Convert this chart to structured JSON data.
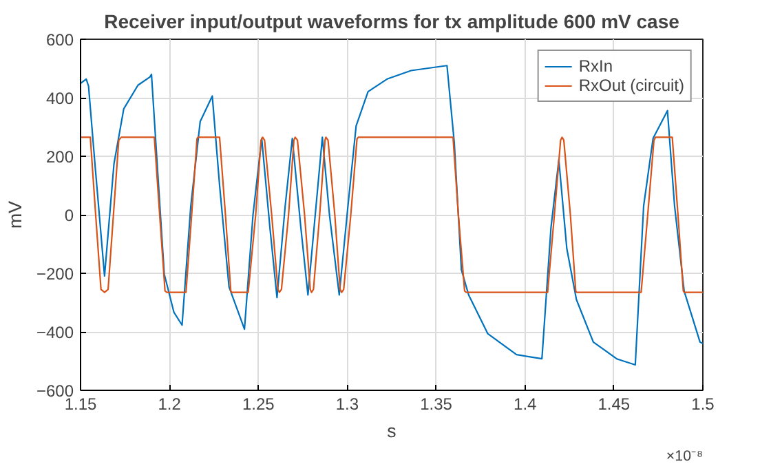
{
  "chart_data": {
    "type": "line",
    "title": "Receiver input/output waveforms for tx amplitude 600 mV case",
    "xlabel": "s",
    "ylabel": "mV",
    "annotations": [
      "×10⁻⁸"
    ],
    "xlim": [
      1.15,
      1.5
    ],
    "xticks": [
      1.15,
      1.2,
      1.25,
      1.3,
      1.35,
      1.4,
      1.45,
      1.5
    ],
    "ylim": [
      -600,
      600
    ],
    "yticks": [
      -600,
      -400,
      -200,
      0,
      200,
      400,
      600
    ],
    "grid": true,
    "legend": "top right",
    "line_style": "solid",
    "series": [
      {
        "name": "RxIn",
        "color": "#0072bd",
        "x": [
          1.15,
          1.1532,
          1.1545,
          1.1581,
          1.1635,
          1.1688,
          1.1743,
          1.1823,
          1.189,
          1.1899,
          1.1931,
          1.1971,
          1.2025,
          1.2071,
          1.212,
          1.2173,
          1.2241,
          1.2282,
          1.2335,
          1.2422,
          1.247,
          1.2519,
          1.2565,
          1.2605,
          1.2651,
          1.2691,
          1.2739,
          1.2779,
          1.282,
          1.286,
          1.29,
          1.2955,
          1.3004,
          1.305,
          1.3117,
          1.3224,
          1.3359,
          1.3561,
          1.3602,
          1.3642,
          1.3683,
          1.379,
          1.3952,
          1.4095,
          1.4146,
          1.419,
          1.4235,
          1.4289,
          1.4384,
          1.4518,
          1.462,
          1.4667,
          1.472,
          1.4801,
          1.4841,
          1.4895,
          1.4984,
          1.5
        ],
        "values": [
          449,
          464,
          440,
          174,
          -209,
          174,
          362,
          443,
          471,
          480,
          174,
          -203,
          -333,
          -377,
          30,
          319,
          406,
          101,
          -246,
          -391,
          0,
          261,
          -43,
          -283,
          30,
          261,
          -43,
          -274,
          0,
          265,
          0,
          -274,
          30,
          304,
          421,
          464,
          493,
          510,
          247,
          -188,
          -274,
          -406,
          -478,
          -492,
          -43,
          188,
          -116,
          -290,
          -435,
          -493,
          -513,
          30,
          261,
          356,
          30,
          -261,
          -435,
          -440
        ]
      },
      {
        "name": "RxOut (circuit)",
        "color": "#d95319",
        "x": [
          1.15,
          1.1555,
          1.1585,
          1.1615,
          1.1635,
          1.1655,
          1.1685,
          1.1715,
          1.1729,
          1.1915,
          1.1945,
          1.1975,
          1.1985,
          1.2093,
          1.2125,
          1.2155,
          1.216,
          1.2282,
          1.2315,
          1.2345,
          1.235,
          1.2443,
          1.2485,
          1.2515,
          1.2524,
          1.2535,
          1.2575,
          1.261,
          1.2618,
          1.263,
          1.267,
          1.27,
          1.2707,
          1.272,
          1.276,
          1.2792,
          1.2799,
          1.281,
          1.2845,
          1.2875,
          1.288,
          1.2892,
          1.293,
          1.296,
          1.2969,
          1.298,
          1.302,
          1.3055,
          1.3063,
          1.3595,
          1.3625,
          1.366,
          1.3669,
          1.4127,
          1.4165,
          1.42,
          1.4208,
          1.4218,
          1.4255,
          1.4285,
          1.4289,
          1.4653,
          1.469,
          1.4725,
          1.4734,
          1.4828,
          1.486,
          1.489,
          1.4895,
          1.5
        ],
        "values": [
          265,
          265,
          0,
          -255,
          -265,
          -255,
          0,
          255,
          265,
          265,
          0,
          -260,
          -265,
          -265,
          0,
          260,
          265,
          265,
          0,
          -260,
          -265,
          -265,
          0,
          255,
          265,
          255,
          0,
          -255,
          -265,
          -255,
          0,
          255,
          265,
          255,
          0,
          -255,
          -265,
          -255,
          0,
          255,
          265,
          255,
          0,
          -255,
          -265,
          -255,
          0,
          260,
          265,
          265,
          0,
          -260,
          -265,
          -265,
          0,
          255,
          265,
          255,
          0,
          -260,
          -265,
          -265,
          0,
          255,
          265,
          265,
          0,
          -260,
          -265,
          -265
        ]
      }
    ]
  }
}
